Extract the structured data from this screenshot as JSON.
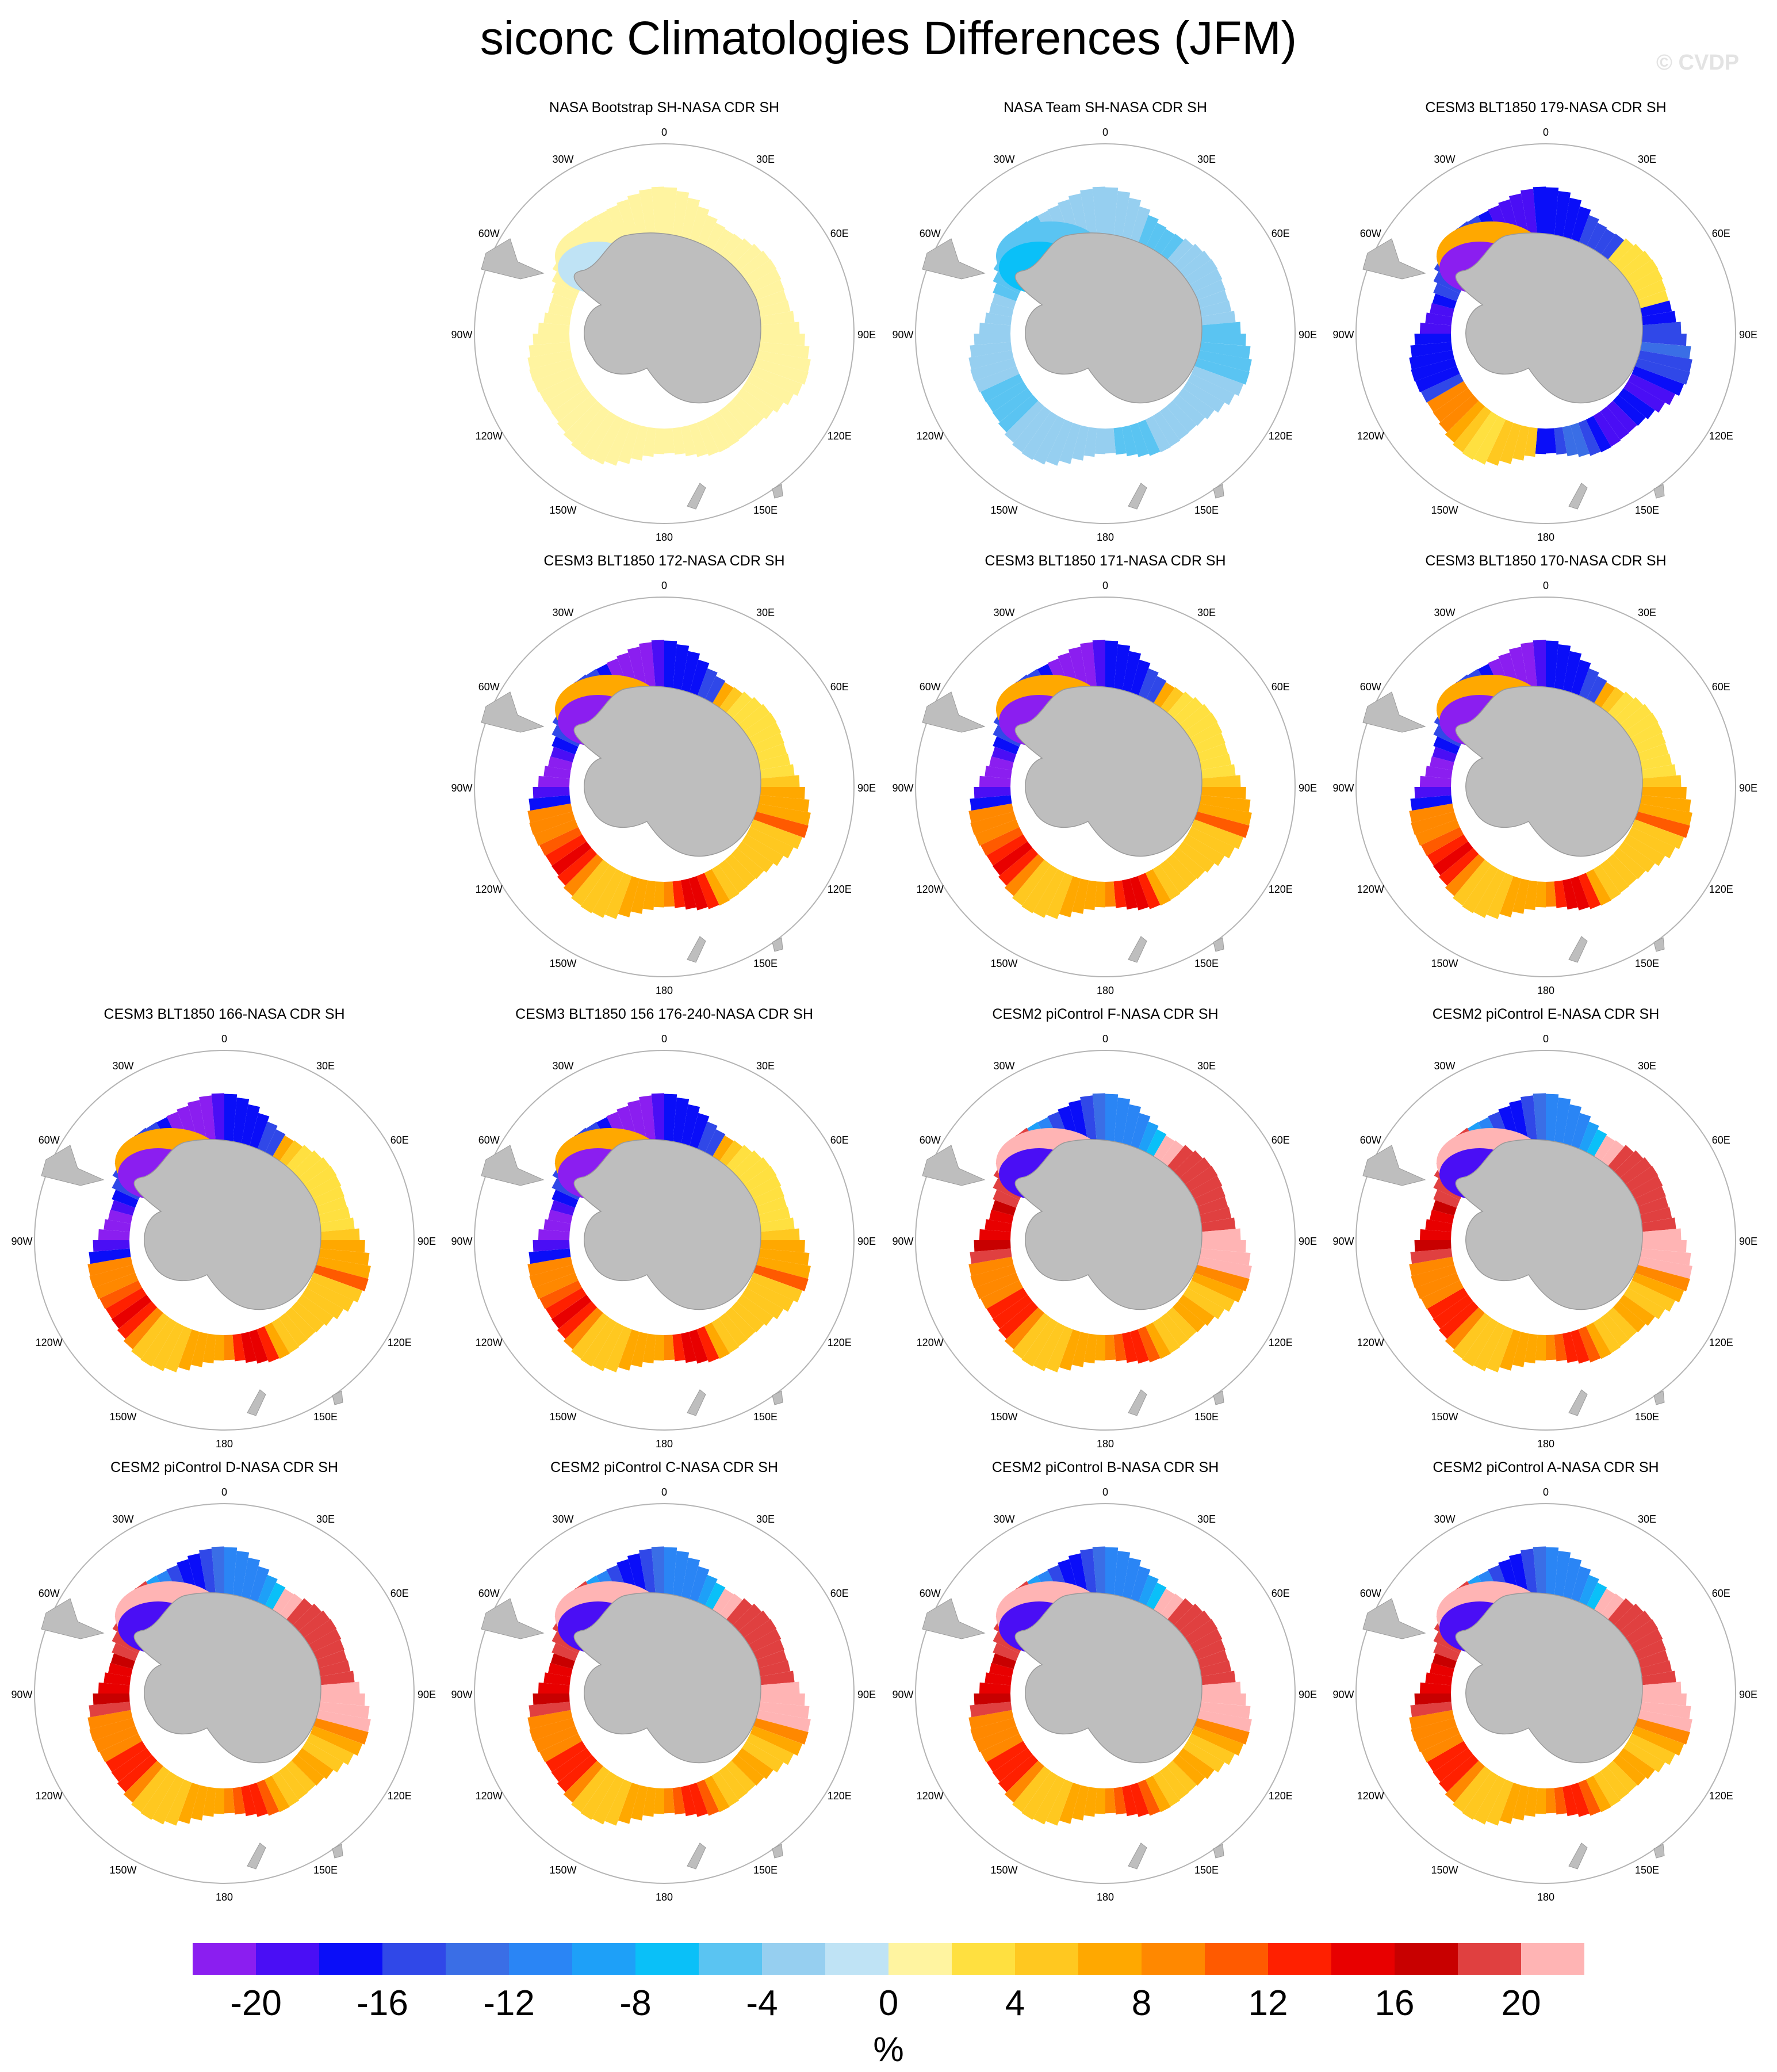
{
  "title": "siconc Climatologies Differences (JFM)",
  "watermark": "© CVDP",
  "map": {
    "longitude_labels": [
      "0",
      "30E",
      "60E",
      "90E",
      "120E",
      "150E",
      "180",
      "150W",
      "120W",
      "90W",
      "60W",
      "30W"
    ],
    "land_color": "#bebebe",
    "ocean_color": "#ffffff"
  },
  "panels": [
    {
      "title": "NASA Bootstrap SH-NASA CDR SH",
      "pattern": "bootstrap"
    },
    {
      "title": "NASA Team SH-NASA CDR SH",
      "pattern": "team"
    },
    {
      "title": "CESM3 BLT1850 179-NASA CDR SH",
      "pattern": "cesm3_179"
    },
    {
      "title": "CESM3 BLT1850 172-NASA CDR SH",
      "pattern": "cesm3"
    },
    {
      "title": "CESM3 BLT1850 171-NASA CDR SH",
      "pattern": "cesm3"
    },
    {
      "title": "CESM3 BLT1850 170-NASA CDR SH",
      "pattern": "cesm3"
    },
    {
      "title": "CESM3 BLT1850 166-NASA CDR SH",
      "pattern": "cesm3"
    },
    {
      "title": "CESM3 BLT1850 156 176-240-NASA CDR SH",
      "pattern": "cesm3"
    },
    {
      "title": "CESM2 piControl F-NASA CDR SH",
      "pattern": "cesm2"
    },
    {
      "title": "CESM2 piControl E-NASA CDR SH",
      "pattern": "cesm2"
    },
    {
      "title": "CESM2 piControl D-NASA CDR SH",
      "pattern": "cesm2"
    },
    {
      "title": "CESM2 piControl C-NASA CDR SH",
      "pattern": "cesm2"
    },
    {
      "title": "CESM2 piControl B-NASA CDR SH",
      "pattern": "cesm2"
    },
    {
      "title": "CESM2 piControl A-NASA CDR SH",
      "pattern": "cesm2"
    }
  ],
  "colorbar": {
    "colors": [
      "#8b1ef0",
      "#4a0ef5",
      "#0a0ef8",
      "#3048e8",
      "#3a6ee6",
      "#2a85f5",
      "#1ea0f8",
      "#0ac0f8",
      "#5ac4f2",
      "#96cff0",
      "#bfe3f5",
      "#fff4a0",
      "#ffe040",
      "#ffc820",
      "#ffa800",
      "#ff8800",
      "#ff5a00",
      "#ff2000",
      "#e80000",
      "#c80000",
      "#e04040",
      "#ffb4b4"
    ],
    "tick_labels": [
      "-20",
      "-16",
      "-12",
      "-8",
      "-4",
      "0",
      "4",
      "8",
      "12",
      "16",
      "20"
    ],
    "unit": "%"
  }
}
